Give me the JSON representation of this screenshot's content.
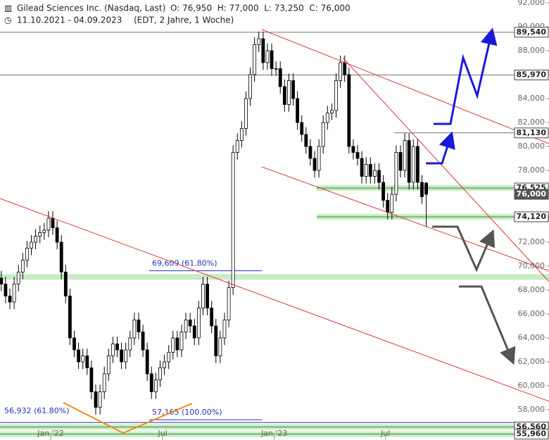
{
  "chart_data": {
    "type": "candlestick",
    "title": "Gilead Sciences Inc. (Nasdaq, Last)",
    "ohlc_text": "O: 76,950  H: 77,000  L: 73,250  C: 76,000",
    "date_range": "11.10.2021 - 04.09.2023",
    "subtitle": "(EDT, 2 Jahre, 1 Woche)",
    "xlim": [
      -0.3,
      127.6
    ],
    "xticks": [
      {
        "value": 11.5,
        "label": "Jan '22"
      },
      {
        "value": 37.6,
        "label": "Jul"
      },
      {
        "value": 63.6,
        "label": "Jan '23"
      },
      {
        "value": 89.5,
        "label": "Jul"
      }
    ],
    "ylim": [
      55471,
      92235
    ],
    "yticks": [
      {
        "value": 58000,
        "label": "58,000"
      },
      {
        "value": 60000,
        "label": "60,000"
      },
      {
        "value": 62000,
        "label": "62,000"
      },
      {
        "value": 64000,
        "label": "64,000"
      },
      {
        "value": 66000,
        "label": "66,000"
      },
      {
        "value": 68000,
        "label": "68,000"
      },
      {
        "value": 70000,
        "label": "70,000"
      },
      {
        "value": 72000,
        "label": "72,000"
      },
      {
        "value": 74000,
        "label": "74,000"
      },
      {
        "value": 76000,
        "label": "76,000"
      },
      {
        "value": 78000,
        "label": "78,000"
      },
      {
        "value": 80000,
        "label": "80,000"
      },
      {
        "value": 82000,
        "label": "82,000"
      },
      {
        "value": 84000,
        "label": "84,000"
      },
      {
        "value": 86000,
        "label": "86,000"
      },
      {
        "value": 88000,
        "label": "88,000"
      },
      {
        "value": 90000,
        "label": "90,000"
      },
      {
        "value": 92000,
        "label": "92,000"
      }
    ],
    "up_color": "#ffffff",
    "down_color": "#000000",
    "open": [
      69000,
      68500,
      67500,
      67000,
      68500,
      69500,
      70500,
      71500,
      72000,
      72500,
      72800,
      73000,
      74000,
      73200,
      72000,
      69500,
      67500,
      64000,
      63000,
      62000,
      62500,
      61500,
      59500,
      58200,
      59500,
      61000,
      62500,
      63500,
      63000,
      62000,
      63000,
      64000,
      65500,
      64500,
      63000,
      61000,
      59500,
      60500,
      61500,
      62000,
      62800,
      64000,
      63000,
      64500,
      65500,
      65000,
      64000,
      66500,
      68500,
      66500,
      65000,
      62500,
      64000,
      65500,
      68200,
      79500,
      80500,
      81500,
      84000,
      86000,
      88500,
      89000,
      87000,
      88000,
      86500,
      86500,
      85000,
      83500,
      85500,
      84000,
      82000,
      81000,
      80000,
      79000,
      78000,
      80000,
      82000,
      82800,
      83000,
      85500,
      87000,
      86000,
      80000,
      79500,
      79000,
      77500,
      78500,
      77500,
      78000,
      77000,
      75500,
      74500,
      76000,
      79500,
      78000,
      80500,
      77000,
      80000,
      77000,
      76950
    ],
    "high": [
      69600,
      69100,
      68100,
      69100,
      70100,
      71100,
      72100,
      72600,
      73100,
      73400,
      73600,
      74600,
      74600,
      73800,
      72600,
      70100,
      68100,
      64600,
      63600,
      63100,
      63100,
      62100,
      60100,
      60100,
      61600,
      63100,
      64100,
      64100,
      63600,
      63600,
      64600,
      66100,
      66100,
      65100,
      63600,
      61600,
      61100,
      62100,
      62600,
      63400,
      64600,
      64600,
      65100,
      66100,
      66100,
      65600,
      67100,
      69100,
      69100,
      67100,
      65600,
      64600,
      66100,
      68800,
      80100,
      81100,
      82100,
      84600,
      86600,
      89100,
      89600,
      89600,
      88600,
      88600,
      87100,
      87100,
      85600,
      86100,
      86100,
      84600,
      82600,
      81600,
      80600,
      79600,
      80600,
      82600,
      83400,
      83600,
      86100,
      87600,
      87600,
      86600,
      80600,
      80100,
      79600,
      79100,
      79100,
      78600,
      78600,
      77600,
      76100,
      76600,
      80100,
      80100,
      81100,
      81100,
      80600,
      80600,
      77600,
      77000
    ],
    "low": [
      67900,
      66900,
      66400,
      66400,
      67900,
      68900,
      69900,
      70900,
      71400,
      71900,
      72200,
      72400,
      72600,
      71400,
      68900,
      66900,
      63400,
      62400,
      61400,
      61400,
      60900,
      58900,
      57600,
      57600,
      58900,
      60400,
      61900,
      62400,
      61400,
      61400,
      62400,
      63400,
      63900,
      62400,
      60400,
      58900,
      58900,
      59900,
      60900,
      61400,
      62200,
      62400,
      62400,
      63900,
      64400,
      63400,
      63400,
      65900,
      65900,
      64400,
      61900,
      61900,
      63400,
      64900,
      67600,
      78900,
      79900,
      80900,
      83400,
      85400,
      87900,
      86400,
      86400,
      85900,
      85900,
      84400,
      82900,
      82900,
      83400,
      81400,
      80400,
      79400,
      78400,
      77400,
      77400,
      79400,
      81400,
      82200,
      82400,
      84900,
      85400,
      79400,
      78900,
      78400,
      76900,
      76900,
      76900,
      76900,
      76400,
      74900,
      73900,
      73900,
      75400,
      77400,
      77400,
      76400,
      76400,
      76400,
      75200,
      73250
    ],
    "close": [
      68500,
      67500,
      67000,
      68500,
      69500,
      70500,
      71500,
      72000,
      72500,
      72800,
      73000,
      74000,
      73200,
      72000,
      69500,
      67500,
      64000,
      63000,
      62000,
      62500,
      61500,
      59500,
      58200,
      59500,
      61000,
      62500,
      63500,
      63000,
      62000,
      63000,
      64000,
      65500,
      64500,
      63000,
      61000,
      59500,
      60500,
      61500,
      62000,
      62800,
      64000,
      63000,
      64500,
      65500,
      65000,
      64000,
      66500,
      68500,
      66500,
      65000,
      62500,
      64000,
      65500,
      68200,
      79500,
      80500,
      81500,
      84000,
      86000,
      88500,
      89000,
      87000,
      88000,
      86500,
      86500,
      85000,
      83500,
      85500,
      84000,
      82000,
      81000,
      80000,
      79000,
      78000,
      80000,
      82000,
      82800,
      83000,
      85500,
      87000,
      86000,
      80000,
      79500,
      79000,
      77500,
      78500,
      77500,
      78000,
      77000,
      75500,
      74500,
      76000,
      79500,
      78000,
      80500,
      77000,
      80000,
      77000,
      75800,
      76000
    ],
    "zones": [
      69100
    ],
    "levels": [
      {
        "value": 89540,
        "label": "89,540",
        "style": "line"
      },
      {
        "value": 85970,
        "label": "85,970",
        "style": "line"
      },
      {
        "value": 81130,
        "label": "81,130",
        "style": "short"
      },
      {
        "value": 76525,
        "label": "76,525",
        "style": "zone"
      },
      {
        "value": 76000,
        "label": "76,000",
        "style": "price"
      },
      {
        "value": 74120,
        "label": "74,120",
        "style": "zone"
      },
      {
        "value": 56560,
        "label": "56,560",
        "style": "zone"
      },
      {
        "value": 55960,
        "label": "55,960",
        "style": "zone"
      }
    ],
    "fib_levels": [
      {
        "value": 69609,
        "label": "69,609 (61.80%)"
      },
      {
        "value": 57165,
        "label": "57,165 (100.00%)"
      },
      {
        "value": 56932,
        "label": "56,932 (61.80%)"
      }
    ]
  }
}
